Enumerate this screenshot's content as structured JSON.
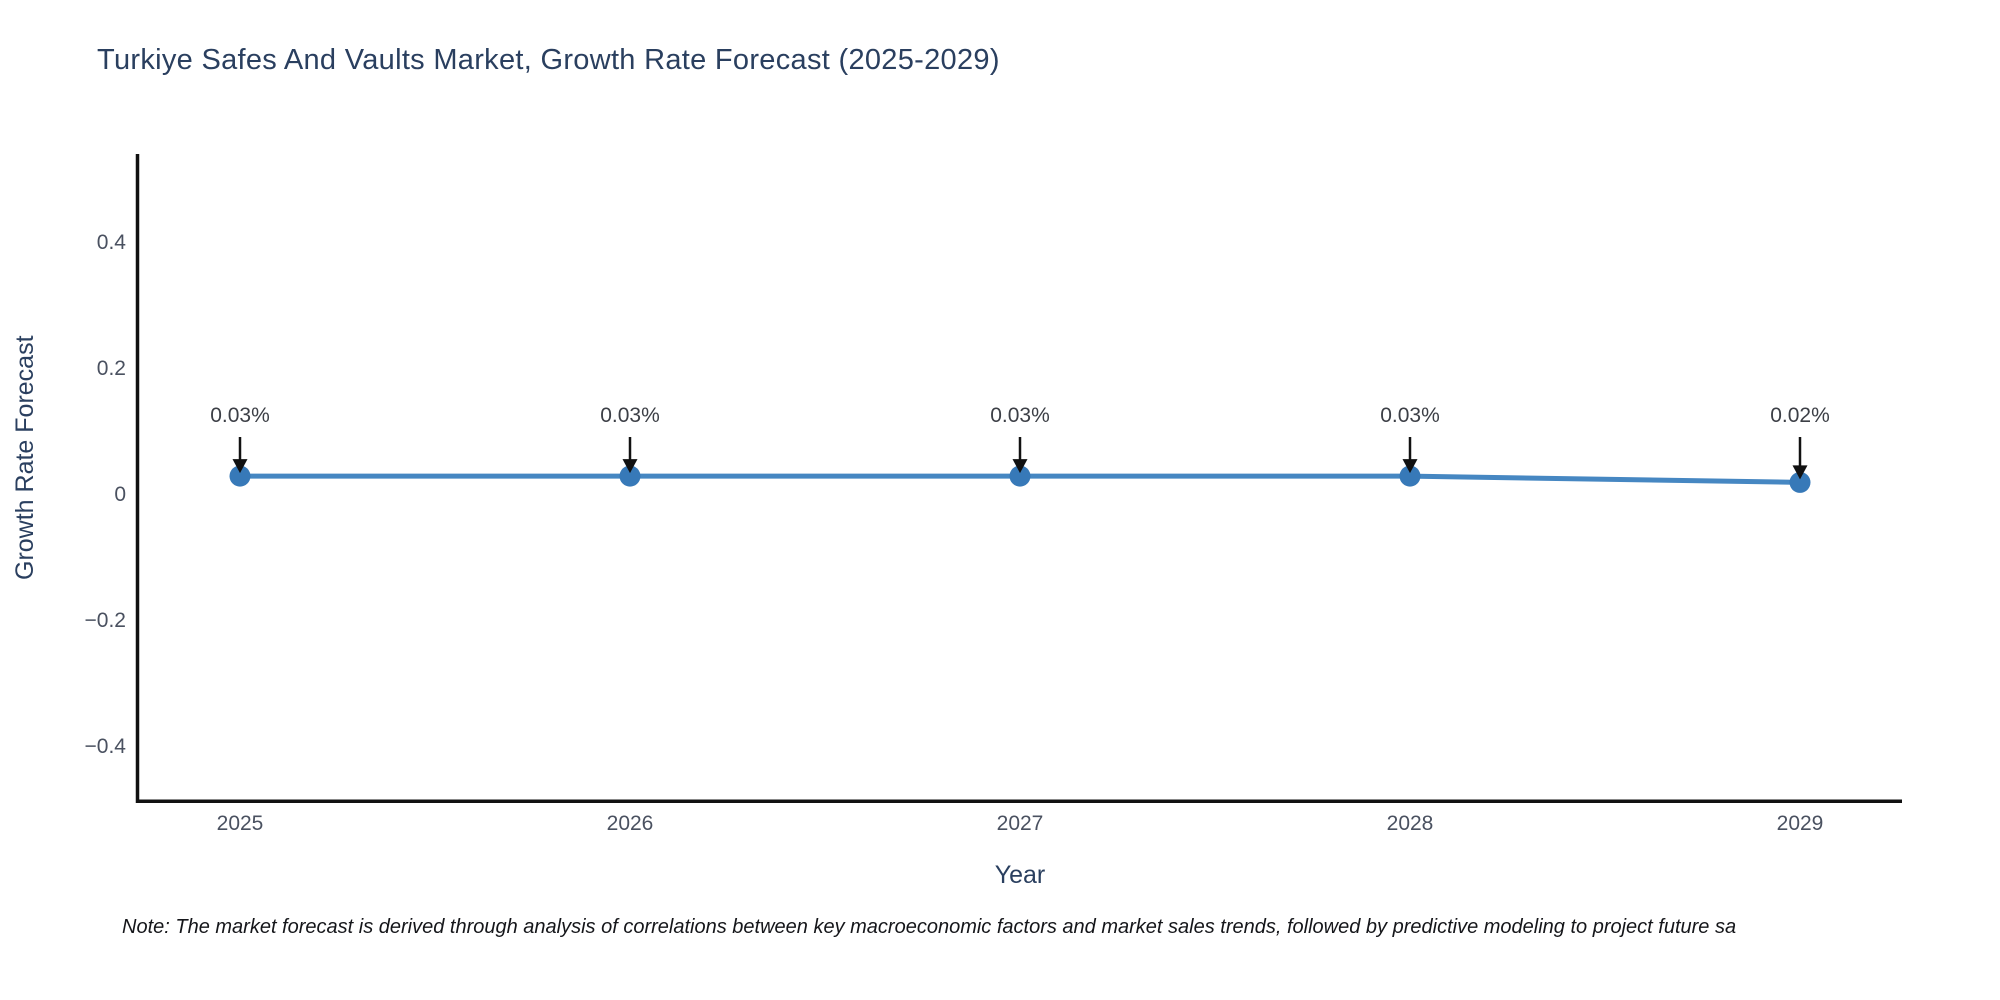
{
  "page": {
    "note": "Note: The market forecast is derived through analysis of correlations between key macroeconomic factors and market sales trends, followed by predictive modeling to project future sa"
  },
  "chart_data": {
    "type": "line",
    "title": "Turkiye Safes And Vaults Market, Growth Rate Forecast (2025-2029)",
    "xlabel": "Year",
    "ylabel": "Growth Rate Forecast",
    "categories": [
      "2025",
      "2026",
      "2027",
      "2028",
      "2029"
    ],
    "series": [
      {
        "name": "Growth Rate Forecast",
        "values": [
          0.03,
          0.03,
          0.03,
          0.03,
          0.02
        ]
      }
    ],
    "point_labels": [
      "0.03%",
      "0.03%",
      "0.03%",
      "0.03%",
      "0.02%"
    ],
    "ytick_labels": [
      "0.4",
      "0.2",
      "0",
      "−0.2",
      "−0.4"
    ],
    "ytick_values": [
      0.4,
      0.2,
      0,
      -0.2,
      -0.4
    ],
    "ylim": [
      -0.48,
      0.55
    ],
    "grid": false,
    "legend_position": "none",
    "colors": {
      "line": "#4687c2",
      "marker": "#3779b8",
      "axis": "#111111",
      "arrow": "#111111",
      "title_text": "#2a3f5f",
      "tick_text": "#4a5160",
      "annotation_text": "#3c3f46",
      "background": "#ffffff"
    }
  }
}
